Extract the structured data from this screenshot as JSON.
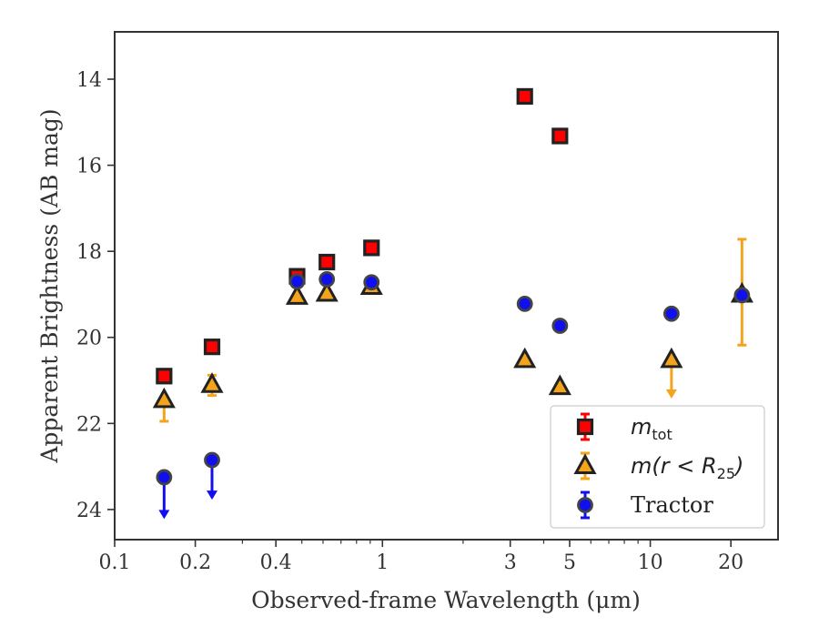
{
  "chart_data": {
    "type": "scatter",
    "title": "",
    "xlabel": "Observed-frame Wavelength (μm)",
    "ylabel": "Apparent Brightness (AB mag)",
    "xscale": "log",
    "xlim": [
      0.1,
      30
    ],
    "ylim": [
      24.7,
      12.9
    ],
    "y_inverted": true,
    "xticks": [
      {
        "value": 0.1,
        "label": "0.1"
      },
      {
        "value": 0.2,
        "label": "0.2"
      },
      {
        "value": 0.4,
        "label": "0.4"
      },
      {
        "value": 1,
        "label": "1"
      },
      {
        "value": 3,
        "label": "3"
      },
      {
        "value": 5,
        "label": "5"
      },
      {
        "value": 10,
        "label": "10"
      },
      {
        "value": 20,
        "label": "20"
      }
    ],
    "yticks": [
      {
        "value": 14,
        "label": "14"
      },
      {
        "value": 16,
        "label": "16"
      },
      {
        "value": 18,
        "label": "18"
      },
      {
        "value": 20,
        "label": "20"
      },
      {
        "value": 22,
        "label": "22"
      },
      {
        "value": 24,
        "label": "24"
      }
    ],
    "grid": false,
    "legend_position": "bottom-right",
    "series": [
      {
        "name": "m_tot",
        "marker": "square",
        "color": "#ff0000",
        "edge_color": "#222222",
        "points": [
          {
            "x": 0.153,
            "y": 20.9
          },
          {
            "x": 0.231,
            "y": 20.22
          },
          {
            "x": 0.48,
            "y": 18.58
          },
          {
            "x": 0.62,
            "y": 18.25
          },
          {
            "x": 0.91,
            "y": 17.92
          },
          {
            "x": 3.4,
            "y": 14.4
          },
          {
            "x": 4.6,
            "y": 15.32
          }
        ]
      },
      {
        "name": "m(r < R_25)",
        "marker": "triangle",
        "color": "#f4a41c",
        "edge_color": "#222222",
        "points": [
          {
            "x": 0.153,
            "y": 21.45,
            "err_low": 21.4,
            "err_high": 21.95
          },
          {
            "x": 0.231,
            "y": 21.1,
            "err_low": 20.88,
            "err_high": 21.35
          },
          {
            "x": 0.48,
            "y": 19.05
          },
          {
            "x": 0.62,
            "y": 18.98
          },
          {
            "x": 0.91,
            "y": 18.82
          },
          {
            "x": 3.4,
            "y": 20.52
          },
          {
            "x": 4.6,
            "y": 21.15
          },
          {
            "x": 12.0,
            "y": 20.52,
            "upper_limit": true,
            "arrow_to": 21.4
          },
          {
            "x": 22.0,
            "y": 19.0,
            "err_low": 17.72,
            "err_high": 20.18
          }
        ]
      },
      {
        "name": "Tractor",
        "marker": "circle",
        "color": "#1010ee",
        "edge_color": "#444444",
        "points": [
          {
            "x": 0.153,
            "y": 23.25,
            "upper_limit": true,
            "arrow_to": 24.2
          },
          {
            "x": 0.231,
            "y": 22.85,
            "upper_limit": true,
            "arrow_to": 23.75
          },
          {
            "x": 0.48,
            "y": 18.7
          },
          {
            "x": 0.62,
            "y": 18.65
          },
          {
            "x": 0.91,
            "y": 18.72
          },
          {
            "x": 3.4,
            "y": 19.22
          },
          {
            "x": 4.6,
            "y": 19.73
          },
          {
            "x": 12.0,
            "y": 19.45
          },
          {
            "x": 22.0,
            "y": 19.02
          }
        ]
      }
    ],
    "legend": [
      {
        "symbol": "square",
        "text_main": "m",
        "text_sub": "tot",
        "text_tail": ""
      },
      {
        "symbol": "triangle",
        "text_main": "m(r < R",
        "text_sub": "25",
        "text_tail": ")"
      },
      {
        "symbol": "circle",
        "text_main": "Tractor",
        "text_sub": "",
        "text_tail": ""
      }
    ]
  }
}
